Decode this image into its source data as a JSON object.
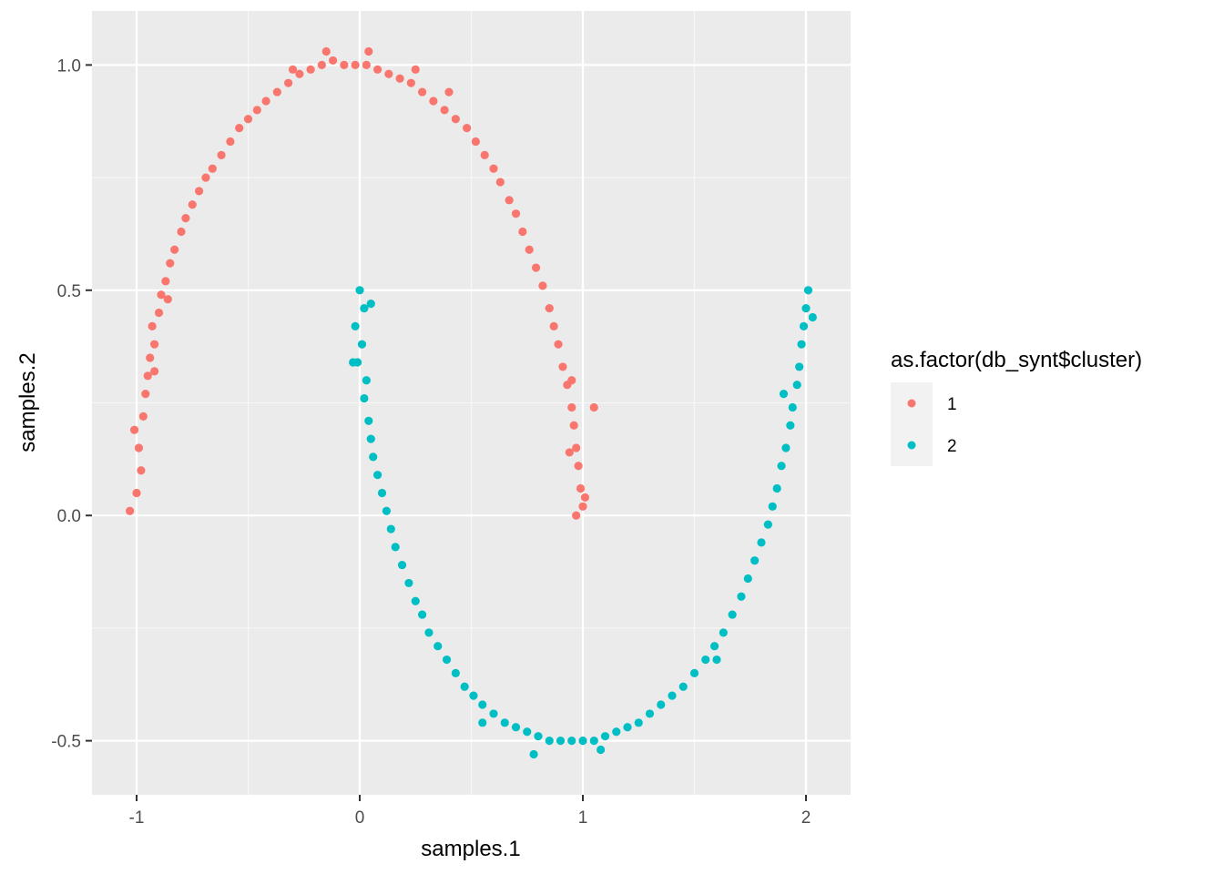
{
  "chart_data": {
    "type": "scatter",
    "title": "",
    "xlabel": "samples.1",
    "ylabel": "samples.2",
    "xlim": [
      -1.2,
      2.2
    ],
    "ylim": [
      -0.62,
      1.12
    ],
    "x_ticks": [
      -1,
      0,
      1,
      2
    ],
    "x_tick_labels": [
      "-1",
      "0",
      "1",
      "2"
    ],
    "y_ticks": [
      -0.5,
      0.0,
      0.5,
      1.0
    ],
    "y_tick_labels": [
      "-0.5",
      "0.0",
      "0.5",
      "1.0"
    ],
    "grid": true,
    "legend": {
      "title": "as.factor(db_synt$cluster)",
      "placement": "right",
      "entries": [
        "1",
        "2"
      ]
    },
    "series": [
      {
        "name": "1",
        "color": "#F8766D",
        "points": [
          [
            -1.03,
            0.01
          ],
          [
            -1.0,
            0.05
          ],
          [
            -0.98,
            0.1
          ],
          [
            -0.99,
            0.15
          ],
          [
            -1.01,
            0.19
          ],
          [
            -0.97,
            0.22
          ],
          [
            -0.96,
            0.27
          ],
          [
            -0.95,
            0.31
          ],
          [
            -0.94,
            0.35
          ],
          [
            -0.92,
            0.38
          ],
          [
            -0.93,
            0.42
          ],
          [
            -0.9,
            0.45
          ],
          [
            -0.89,
            0.49
          ],
          [
            -0.87,
            0.52
          ],
          [
            -0.85,
            0.56
          ],
          [
            -0.83,
            0.59
          ],
          [
            -0.8,
            0.63
          ],
          [
            -0.78,
            0.66
          ],
          [
            -0.75,
            0.69
          ],
          [
            -0.72,
            0.72
          ],
          [
            -0.69,
            0.75
          ],
          [
            -0.66,
            0.77
          ],
          [
            -0.62,
            0.8
          ],
          [
            -0.58,
            0.83
          ],
          [
            -0.54,
            0.86
          ],
          [
            -0.5,
            0.88
          ],
          [
            -0.46,
            0.9
          ],
          [
            -0.42,
            0.92
          ],
          [
            -0.37,
            0.94
          ],
          [
            -0.32,
            0.96
          ],
          [
            -0.27,
            0.98
          ],
          [
            -0.22,
            0.99
          ],
          [
            -0.17,
            1.0
          ],
          [
            -0.12,
            1.01
          ],
          [
            -0.07,
            1.0
          ],
          [
            -0.02,
            1.0
          ],
          [
            0.03,
            1.0
          ],
          [
            0.08,
            0.99
          ],
          [
            0.13,
            0.98
          ],
          [
            0.18,
            0.97
          ],
          [
            0.23,
            0.96
          ],
          [
            0.28,
            0.94
          ],
          [
            0.33,
            0.92
          ],
          [
            0.38,
            0.9
          ],
          [
            0.43,
            0.88
          ],
          [
            0.48,
            0.86
          ],
          [
            0.52,
            0.83
          ],
          [
            0.56,
            0.8
          ],
          [
            0.6,
            0.77
          ],
          [
            0.63,
            0.74
          ],
          [
            0.67,
            0.7
          ],
          [
            0.7,
            0.67
          ],
          [
            0.73,
            0.63
          ],
          [
            0.76,
            0.59
          ],
          [
            0.79,
            0.55
          ],
          [
            0.82,
            0.51
          ],
          [
            0.85,
            0.46
          ],
          [
            0.87,
            0.42
          ],
          [
            0.89,
            0.38
          ],
          [
            0.91,
            0.33
          ],
          [
            0.93,
            0.29
          ],
          [
            0.95,
            0.24
          ],
          [
            0.96,
            0.2
          ],
          [
            0.97,
            0.15
          ],
          [
            0.98,
            0.11
          ],
          [
            0.99,
            0.06
          ],
          [
            1.0,
            0.02
          ],
          [
            0.97,
            0.0
          ],
          [
            1.01,
            0.04
          ],
          [
            1.05,
            0.24
          ],
          [
            0.94,
            0.14
          ],
          [
            0.95,
            0.3
          ],
          [
            -0.92,
            0.32
          ],
          [
            -0.86,
            0.48
          ],
          [
            -0.3,
            0.99
          ],
          [
            -0.15,
            1.03
          ],
          [
            0.04,
            1.03
          ],
          [
            0.25,
            0.99
          ],
          [
            0.4,
            0.94
          ]
        ]
      },
      {
        "name": "2",
        "color": "#00BFC4",
        "points": [
          [
            0.0,
            0.5
          ],
          [
            0.02,
            0.46
          ],
          [
            -0.02,
            0.42
          ],
          [
            0.01,
            0.38
          ],
          [
            -0.01,
            0.34
          ],
          [
            0.03,
            0.3
          ],
          [
            0.02,
            0.26
          ],
          [
            0.04,
            0.21
          ],
          [
            0.05,
            0.17
          ],
          [
            0.06,
            0.13
          ],
          [
            0.08,
            0.09
          ],
          [
            0.1,
            0.05
          ],
          [
            0.12,
            0.01
          ],
          [
            0.14,
            -0.03
          ],
          [
            0.16,
            -0.07
          ],
          [
            0.19,
            -0.11
          ],
          [
            0.22,
            -0.15
          ],
          [
            0.25,
            -0.19
          ],
          [
            0.28,
            -0.22
          ],
          [
            0.31,
            -0.26
          ],
          [
            0.35,
            -0.29
          ],
          [
            0.39,
            -0.32
          ],
          [
            0.43,
            -0.35
          ],
          [
            0.47,
            -0.38
          ],
          [
            0.51,
            -0.4
          ],
          [
            0.55,
            -0.42
          ],
          [
            0.6,
            -0.44
          ],
          [
            0.65,
            -0.46
          ],
          [
            0.7,
            -0.47
          ],
          [
            0.75,
            -0.48
          ],
          [
            0.8,
            -0.49
          ],
          [
            0.85,
            -0.5
          ],
          [
            0.9,
            -0.5
          ],
          [
            0.95,
            -0.5
          ],
          [
            1.0,
            -0.5
          ],
          [
            1.05,
            -0.5
          ],
          [
            1.1,
            -0.49
          ],
          [
            1.15,
            -0.48
          ],
          [
            1.2,
            -0.47
          ],
          [
            1.25,
            -0.46
          ],
          [
            1.3,
            -0.44
          ],
          [
            1.35,
            -0.42
          ],
          [
            1.4,
            -0.4
          ],
          [
            1.45,
            -0.38
          ],
          [
            1.5,
            -0.35
          ],
          [
            1.55,
            -0.32
          ],
          [
            1.59,
            -0.29
          ],
          [
            1.63,
            -0.26
          ],
          [
            1.67,
            -0.22
          ],
          [
            1.71,
            -0.18
          ],
          [
            1.74,
            -0.14
          ],
          [
            1.77,
            -0.1
          ],
          [
            1.8,
            -0.06
          ],
          [
            1.83,
            -0.02
          ],
          [
            1.85,
            0.02
          ],
          [
            1.87,
            0.06
          ],
          [
            1.89,
            0.11
          ],
          [
            1.91,
            0.15
          ],
          [
            1.93,
            0.2
          ],
          [
            1.94,
            0.24
          ],
          [
            1.96,
            0.29
          ],
          [
            1.97,
            0.33
          ],
          [
            1.98,
            0.38
          ],
          [
            1.99,
            0.42
          ],
          [
            2.0,
            0.46
          ],
          [
            2.01,
            0.5
          ],
          [
            -0.03,
            0.34
          ],
          [
            0.05,
            0.47
          ],
          [
            0.78,
            -0.53
          ],
          [
            1.08,
            -0.52
          ],
          [
            0.55,
            -0.46
          ],
          [
            1.6,
            -0.32
          ],
          [
            1.9,
            0.27
          ],
          [
            2.03,
            0.44
          ]
        ]
      }
    ]
  }
}
